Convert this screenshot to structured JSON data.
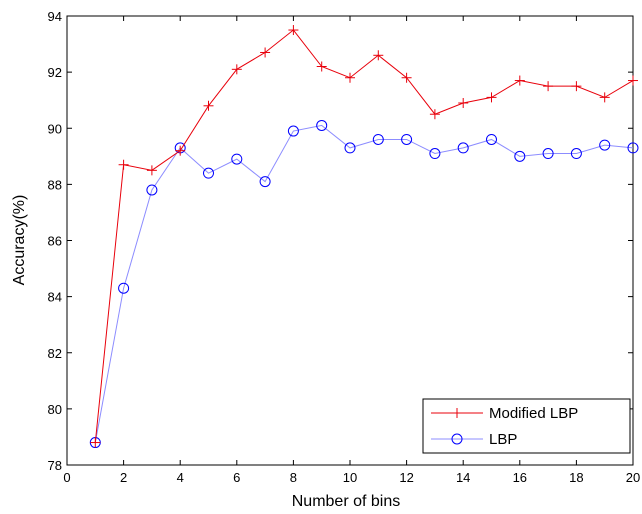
{
  "chart_data": {
    "type": "line",
    "title": "",
    "xlabel": "Number of bins",
    "ylabel": "Accuracy(%)",
    "xlim": [
      0,
      20
    ],
    "ylim": [
      78,
      94
    ],
    "x_ticks": [
      0,
      2,
      4,
      6,
      8,
      10,
      12,
      14,
      16,
      18,
      20
    ],
    "y_ticks": [
      78,
      80,
      82,
      84,
      86,
      88,
      90,
      92,
      94
    ],
    "grid": false,
    "legend_position": "bottom-right",
    "x": [
      1,
      2,
      3,
      4,
      5,
      6,
      7,
      8,
      9,
      10,
      11,
      12,
      13,
      14,
      15,
      16,
      17,
      18,
      19,
      20
    ],
    "series": [
      {
        "name": "Modified LBP",
        "color": "#e8000b",
        "marker": "plus",
        "values": [
          78.8,
          88.7,
          88.5,
          89.2,
          90.8,
          92.1,
          92.7,
          93.5,
          92.2,
          91.8,
          92.6,
          91.8,
          90.5,
          90.9,
          91.1,
          91.7,
          91.5,
          91.5,
          91.1,
          91.7
        ]
      },
      {
        "name": "LBP",
        "color": "#0000ff",
        "line_color": "#8c8cff",
        "marker": "circle",
        "values": [
          78.8,
          84.3,
          87.8,
          89.3,
          88.4,
          88.9,
          88.1,
          89.9,
          90.1,
          89.3,
          89.6,
          89.6,
          89.1,
          89.3,
          89.6,
          89.0,
          89.1,
          89.1,
          89.4,
          89.3
        ]
      }
    ]
  }
}
